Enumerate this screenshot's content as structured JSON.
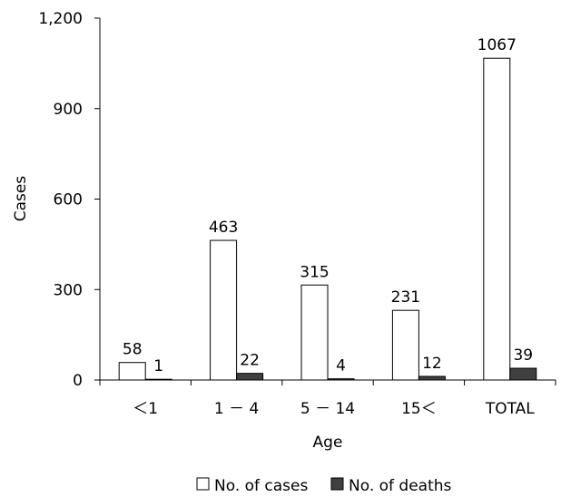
{
  "chart_data": {
    "type": "bar",
    "title": "",
    "xlabel": "Age",
    "ylabel": "Cases",
    "ylim": [
      0,
      1200
    ],
    "yticks": [
      0,
      300,
      600,
      900,
      1200
    ],
    "ytick_labels": [
      "0",
      "300",
      "600",
      "900",
      "1,200"
    ],
    "categories": [
      "＜1",
      "1 － 4",
      "5 － 14",
      "15＜",
      "TOTAL"
    ],
    "series": [
      {
        "name": "No. of cases",
        "values": [
          58,
          463,
          315,
          231,
          1067
        ],
        "fill": "#ffffff",
        "stroke": "#000000"
      },
      {
        "name": "No. of deaths",
        "values": [
          1,
          22,
          4,
          12,
          39
        ],
        "fill": "#404040",
        "stroke": "#000000"
      }
    ],
    "grid": false,
    "legend_position": "bottom"
  }
}
